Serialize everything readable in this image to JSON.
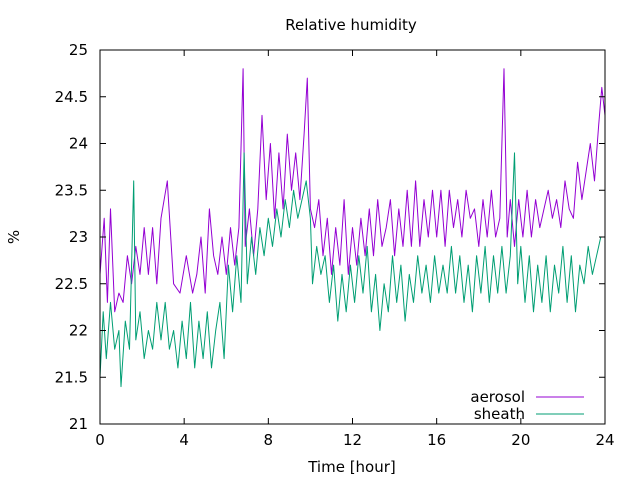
{
  "chart_data": {
    "type": "line",
    "title": "Relative humidity",
    "xlabel": "Time [hour]",
    "ylabel": "%",
    "xlim": [
      0,
      24
    ],
    "ylim": [
      21,
      25
    ],
    "xticks": [
      0,
      4,
      8,
      12,
      16,
      20,
      24
    ],
    "yticks": [
      21,
      21.5,
      22,
      22.5,
      23,
      23.5,
      24,
      24.5,
      25
    ],
    "x_tick_labels": [
      "0",
      "4",
      "8",
      "12",
      "16",
      "20",
      "24"
    ],
    "y_tick_labels": [
      "21",
      "21.5",
      "22",
      "22.5",
      "23",
      "23.5",
      "24",
      "24.5",
      "25"
    ],
    "grid": false,
    "legend_position": "bottom-right",
    "series": [
      {
        "name": "aerosol",
        "color": "#9400d3",
        "points": [
          [
            0.0,
            22.6
          ],
          [
            0.2,
            23.2
          ],
          [
            0.35,
            22.3
          ],
          [
            0.5,
            23.3
          ],
          [
            0.7,
            22.2
          ],
          [
            0.9,
            22.4
          ],
          [
            1.1,
            22.3
          ],
          [
            1.3,
            22.8
          ],
          [
            1.5,
            22.5
          ],
          [
            1.7,
            22.9
          ],
          [
            1.9,
            22.6
          ],
          [
            2.1,
            23.1
          ],
          [
            2.3,
            22.6
          ],
          [
            2.5,
            23.1
          ],
          [
            2.7,
            22.5
          ],
          [
            2.9,
            23.2
          ],
          [
            3.2,
            23.6
          ],
          [
            3.5,
            22.5
          ],
          [
            3.8,
            22.4
          ],
          [
            4.1,
            22.8
          ],
          [
            4.4,
            22.4
          ],
          [
            4.6,
            22.6
          ],
          [
            4.8,
            23.0
          ],
          [
            5.0,
            22.4
          ],
          [
            5.2,
            23.3
          ],
          [
            5.4,
            22.8
          ],
          [
            5.6,
            22.6
          ],
          [
            5.8,
            23.0
          ],
          [
            6.0,
            22.6
          ],
          [
            6.2,
            23.1
          ],
          [
            6.4,
            22.7
          ],
          [
            6.6,
            23.1
          ],
          [
            6.8,
            24.8
          ],
          [
            6.9,
            22.9
          ],
          [
            7.1,
            23.3
          ],
          [
            7.3,
            22.8
          ],
          [
            7.5,
            23.3
          ],
          [
            7.7,
            24.3
          ],
          [
            7.9,
            23.4
          ],
          [
            8.1,
            24.0
          ],
          [
            8.3,
            23.2
          ],
          [
            8.5,
            23.9
          ],
          [
            8.7,
            23.3
          ],
          [
            8.9,
            24.1
          ],
          [
            9.1,
            23.5
          ],
          [
            9.3,
            23.9
          ],
          [
            9.5,
            23.4
          ],
          [
            9.7,
            24.1
          ],
          [
            9.85,
            24.7
          ],
          [
            10.0,
            23.3
          ],
          [
            10.2,
            23.1
          ],
          [
            10.4,
            23.4
          ],
          [
            10.6,
            22.8
          ],
          [
            10.8,
            23.2
          ],
          [
            11.0,
            22.6
          ],
          [
            11.2,
            23.1
          ],
          [
            11.4,
            22.7
          ],
          [
            11.6,
            23.4
          ],
          [
            11.8,
            22.6
          ],
          [
            12.0,
            23.1
          ],
          [
            12.2,
            22.7
          ],
          [
            12.4,
            23.2
          ],
          [
            12.6,
            22.8
          ],
          [
            12.8,
            23.3
          ],
          [
            13.0,
            22.8
          ],
          [
            13.2,
            23.4
          ],
          [
            13.4,
            22.9
          ],
          [
            13.6,
            23.1
          ],
          [
            13.8,
            23.4
          ],
          [
            14.0,
            22.8
          ],
          [
            14.2,
            23.3
          ],
          [
            14.4,
            22.9
          ],
          [
            14.6,
            23.5
          ],
          [
            14.8,
            22.9
          ],
          [
            15.0,
            23.6
          ],
          [
            15.2,
            22.9
          ],
          [
            15.4,
            23.4
          ],
          [
            15.6,
            23.0
          ],
          [
            15.8,
            23.5
          ],
          [
            16.0,
            23.0
          ],
          [
            16.2,
            23.5
          ],
          [
            16.4,
            22.9
          ],
          [
            16.6,
            23.5
          ],
          [
            16.8,
            23.1
          ],
          [
            17.0,
            23.4
          ],
          [
            17.2,
            23.0
          ],
          [
            17.4,
            23.5
          ],
          [
            17.6,
            23.2
          ],
          [
            17.8,
            23.3
          ],
          [
            18.0,
            22.9
          ],
          [
            18.2,
            23.4
          ],
          [
            18.4,
            23.0
          ],
          [
            18.6,
            23.5
          ],
          [
            18.8,
            23.0
          ],
          [
            19.0,
            23.2
          ],
          [
            19.2,
            24.8
          ],
          [
            19.35,
            23.0
          ],
          [
            19.5,
            23.4
          ],
          [
            19.7,
            22.9
          ],
          [
            19.9,
            23.4
          ],
          [
            20.1,
            23.0
          ],
          [
            20.3,
            23.5
          ],
          [
            20.5,
            23.0
          ],
          [
            20.7,
            23.4
          ],
          [
            20.9,
            23.1
          ],
          [
            21.1,
            23.3
          ],
          [
            21.3,
            23.5
          ],
          [
            21.5,
            23.2
          ],
          [
            21.7,
            23.4
          ],
          [
            21.9,
            23.1
          ],
          [
            22.1,
            23.6
          ],
          [
            22.3,
            23.3
          ],
          [
            22.5,
            23.2
          ],
          [
            22.7,
            23.8
          ],
          [
            22.9,
            23.4
          ],
          [
            23.1,
            23.7
          ],
          [
            23.3,
            24.0
          ],
          [
            23.5,
            23.6
          ],
          [
            23.7,
            24.2
          ],
          [
            23.85,
            24.6
          ],
          [
            24.0,
            24.3
          ]
        ]
      },
      {
        "name": "sheath",
        "color": "#009e73",
        "points": [
          [
            0.0,
            21.5
          ],
          [
            0.15,
            22.2
          ],
          [
            0.3,
            21.7
          ],
          [
            0.5,
            22.3
          ],
          [
            0.7,
            21.8
          ],
          [
            0.9,
            22.0
          ],
          [
            1.0,
            21.4
          ],
          [
            1.2,
            22.1
          ],
          [
            1.4,
            21.8
          ],
          [
            1.6,
            23.6
          ],
          [
            1.7,
            21.9
          ],
          [
            1.9,
            22.2
          ],
          [
            2.1,
            21.7
          ],
          [
            2.3,
            22.0
          ],
          [
            2.5,
            21.8
          ],
          [
            2.7,
            22.3
          ],
          [
            2.9,
            21.9
          ],
          [
            3.1,
            22.3
          ],
          [
            3.3,
            21.8
          ],
          [
            3.5,
            22.0
          ],
          [
            3.7,
            21.6
          ],
          [
            3.9,
            22.1
          ],
          [
            4.1,
            21.7
          ],
          [
            4.3,
            22.3
          ],
          [
            4.5,
            21.6
          ],
          [
            4.7,
            22.1
          ],
          [
            4.9,
            21.7
          ],
          [
            5.1,
            22.2
          ],
          [
            5.3,
            21.6
          ],
          [
            5.5,
            22.0
          ],
          [
            5.7,
            22.3
          ],
          [
            5.9,
            21.7
          ],
          [
            6.1,
            22.7
          ],
          [
            6.3,
            22.2
          ],
          [
            6.5,
            22.8
          ],
          [
            6.7,
            22.3
          ],
          [
            6.85,
            23.9
          ],
          [
            7.0,
            22.5
          ],
          [
            7.2,
            23.0
          ],
          [
            7.4,
            22.6
          ],
          [
            7.6,
            23.1
          ],
          [
            7.8,
            22.8
          ],
          [
            8.0,
            23.2
          ],
          [
            8.2,
            22.9
          ],
          [
            8.4,
            23.3
          ],
          [
            8.6,
            23.0
          ],
          [
            8.8,
            23.4
          ],
          [
            9.0,
            23.1
          ],
          [
            9.2,
            23.5
          ],
          [
            9.4,
            23.2
          ],
          [
            9.6,
            23.4
          ],
          [
            9.8,
            23.6
          ],
          [
            10.0,
            23.2
          ],
          [
            10.1,
            22.5
          ],
          [
            10.3,
            22.9
          ],
          [
            10.5,
            22.6
          ],
          [
            10.7,
            22.8
          ],
          [
            10.9,
            22.3
          ],
          [
            11.1,
            22.7
          ],
          [
            11.3,
            22.1
          ],
          [
            11.5,
            22.6
          ],
          [
            11.7,
            22.2
          ],
          [
            11.9,
            22.7
          ],
          [
            12.1,
            22.3
          ],
          [
            12.3,
            22.8
          ],
          [
            12.5,
            22.4
          ],
          [
            12.7,
            22.9
          ],
          [
            12.9,
            22.2
          ],
          [
            13.1,
            22.6
          ],
          [
            13.3,
            22.0
          ],
          [
            13.5,
            22.5
          ],
          [
            13.7,
            22.2
          ],
          [
            13.9,
            22.8
          ],
          [
            14.1,
            22.3
          ],
          [
            14.3,
            22.7
          ],
          [
            14.5,
            22.1
          ],
          [
            14.7,
            22.6
          ],
          [
            14.9,
            22.3
          ],
          [
            15.1,
            22.8
          ],
          [
            15.3,
            22.4
          ],
          [
            15.5,
            22.7
          ],
          [
            15.7,
            22.3
          ],
          [
            15.9,
            22.8
          ],
          [
            16.1,
            22.4
          ],
          [
            16.3,
            22.7
          ],
          [
            16.5,
            22.4
          ],
          [
            16.7,
            22.9
          ],
          [
            16.9,
            22.4
          ],
          [
            17.1,
            22.8
          ],
          [
            17.3,
            22.3
          ],
          [
            17.5,
            22.7
          ],
          [
            17.7,
            22.2
          ],
          [
            17.9,
            22.8
          ],
          [
            18.1,
            22.4
          ],
          [
            18.3,
            22.9
          ],
          [
            18.5,
            22.3
          ],
          [
            18.7,
            22.8
          ],
          [
            18.9,
            22.4
          ],
          [
            19.1,
            22.9
          ],
          [
            19.3,
            22.4
          ],
          [
            19.5,
            22.8
          ],
          [
            19.7,
            23.9
          ],
          [
            19.85,
            22.5
          ],
          [
            20.0,
            22.9
          ],
          [
            20.2,
            22.3
          ],
          [
            20.4,
            22.8
          ],
          [
            20.6,
            22.2
          ],
          [
            20.8,
            22.7
          ],
          [
            21.0,
            22.3
          ],
          [
            21.2,
            22.8
          ],
          [
            21.4,
            22.2
          ],
          [
            21.6,
            22.7
          ],
          [
            21.8,
            22.4
          ],
          [
            22.0,
            22.9
          ],
          [
            22.2,
            22.3
          ],
          [
            22.4,
            22.8
          ],
          [
            22.6,
            22.2
          ],
          [
            22.8,
            22.7
          ],
          [
            23.0,
            22.5
          ],
          [
            23.2,
            22.9
          ],
          [
            23.4,
            22.6
          ],
          [
            23.6,
            22.8
          ],
          [
            23.8,
            23.0
          ],
          [
            24.0,
            23.0
          ]
        ]
      }
    ]
  }
}
